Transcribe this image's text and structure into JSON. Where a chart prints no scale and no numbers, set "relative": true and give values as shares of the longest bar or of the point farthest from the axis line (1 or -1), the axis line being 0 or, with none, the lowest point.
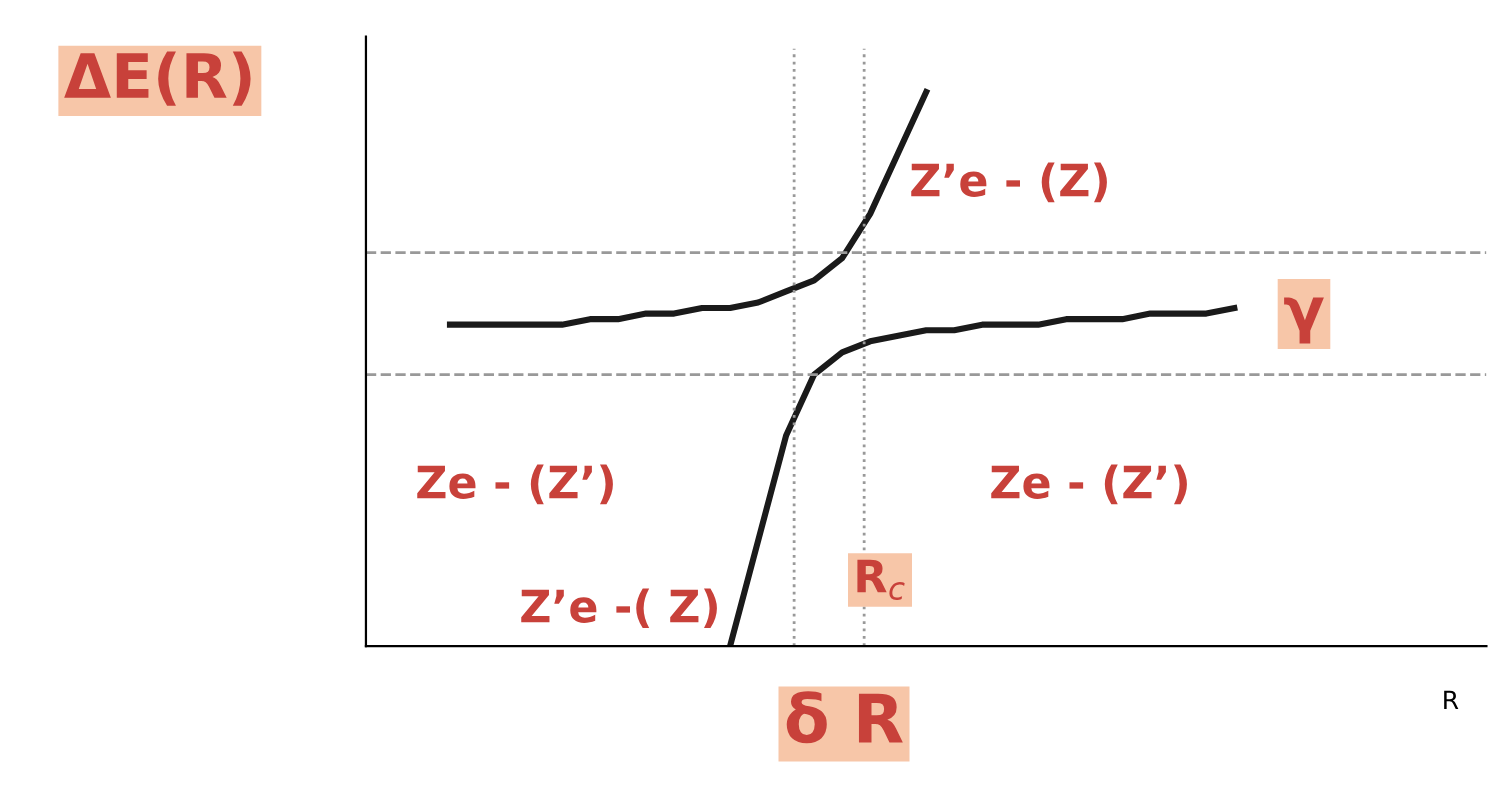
{
  "chart_data": {
    "type": "line",
    "relative": true,
    "xlabel": "R",
    "ylabel": "ΔE(R)",
    "categories": [
      null,
      null,
      null,
      null,
      null,
      null,
      null,
      null,
      null,
      null,
      null,
      null,
      null,
      null,
      null,
      null,
      null,
      null,
      null,
      null,
      null,
      null,
      null,
      null,
      null,
      null,
      null,
      null,
      null,
      null,
      null,
      null,
      null,
      null,
      null,
      null,
      null,
      null,
      null,
      null,
      null
    ],
    "series": [
      {
        "color": "#1a1a1a",
        "values": [
          null,
          null,
          null,
          0.58,
          0.58,
          0.58,
          0.58,
          0.58,
          0.59,
          0.59,
          0.6,
          0.6,
          0.61,
          0.61,
          0.62,
          0.64,
          0.66,
          0.7,
          0.78,
          0.89,
          1.0,
          null,
          null,
          null,
          null,
          null,
          null,
          null,
          null,
          null,
          null,
          null,
          null,
          null,
          null,
          null,
          null,
          null,
          null,
          null,
          null
        ]
      },
      {
        "color": "#1a1a1a",
        "values": [
          null,
          null,
          null,
          null,
          null,
          null,
          null,
          null,
          null,
          null,
          null,
          null,
          null,
          0.0,
          0.19,
          0.38,
          0.49,
          0.53,
          0.55,
          0.56,
          0.57,
          0.57,
          0.58,
          0.58,
          0.58,
          0.59,
          0.59,
          0.59,
          0.6,
          0.6,
          0.6,
          0.61,
          null,
          null,
          null,
          null,
          null,
          null,
          null,
          null,
          null
        ]
      }
    ],
    "ref_lines": [
      {
        "axis": "y",
        "value": 0.71,
        "color": "#999999",
        "line_style": "dashed"
      },
      {
        "axis": "y",
        "value": 0.49,
        "color": "#999999",
        "line_style": "dashed"
      }
    ],
    "annotations": [
      "Z’e - (Z)",
      "γ",
      "Ze - (Z’)",
      "Ze - (Z’)",
      "Z’e -( Z)",
      "R$_{c}$",
      "δ R"
    ],
    "legend": false,
    "marker": "none",
    "line_style": "solid"
  }
}
